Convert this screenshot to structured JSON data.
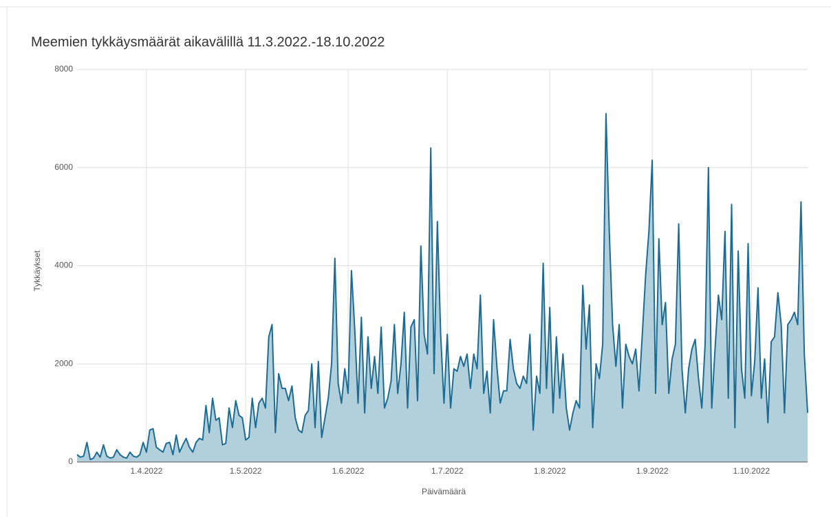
{
  "chart_data": {
    "type": "area",
    "title": "Meemien tykkäysmäärät aikavälillä 11.3.2022.-18.10.2022",
    "xlabel": "Päivämäärä",
    "ylabel": "Tykkäykset",
    "xlim": [
      "2022-03-11",
      "2022-10-18"
    ],
    "ylim": [
      0,
      8000
    ],
    "yticks": [
      0,
      2000,
      4000,
      6000,
      8000
    ],
    "xticks": [
      {
        "value": "2022-04-01",
        "label": "1.4.2022"
      },
      {
        "value": "2022-05-01",
        "label": "1.5.2022"
      },
      {
        "value": "2022-06-01",
        "label": "1.6.2022"
      },
      {
        "value": "2022-07-01",
        "label": "1.7.2022"
      },
      {
        "value": "2022-08-01",
        "label": "1.8.2022"
      },
      {
        "value": "2022-09-01",
        "label": "1.9.2022"
      },
      {
        "value": "2022-10-01",
        "label": "1.10.2022"
      }
    ],
    "grid": true,
    "color": "#1b6b93",
    "fill": "#b2cfdc",
    "x": [
      "2022-03-11",
      "2022-03-12",
      "2022-03-13",
      "2022-03-14",
      "2022-03-15",
      "2022-03-16",
      "2022-03-17",
      "2022-03-18",
      "2022-03-19",
      "2022-03-20",
      "2022-03-21",
      "2022-03-22",
      "2022-03-23",
      "2022-03-24",
      "2022-03-25",
      "2022-03-26",
      "2022-03-27",
      "2022-03-28",
      "2022-03-29",
      "2022-03-30",
      "2022-03-31",
      "2022-04-01",
      "2022-04-02",
      "2022-04-03",
      "2022-04-04",
      "2022-04-05",
      "2022-04-06",
      "2022-04-07",
      "2022-04-08",
      "2022-04-09",
      "2022-04-10",
      "2022-04-11",
      "2022-04-12",
      "2022-04-13",
      "2022-04-14",
      "2022-04-15",
      "2022-04-16",
      "2022-04-17",
      "2022-04-18",
      "2022-04-19",
      "2022-04-20",
      "2022-04-21",
      "2022-04-22",
      "2022-04-23",
      "2022-04-24",
      "2022-04-25",
      "2022-04-26",
      "2022-04-27",
      "2022-04-28",
      "2022-04-29",
      "2022-04-30",
      "2022-05-01",
      "2022-05-02",
      "2022-05-03",
      "2022-05-04",
      "2022-05-05",
      "2022-05-06",
      "2022-05-07",
      "2022-05-08",
      "2022-05-09",
      "2022-05-10",
      "2022-05-11",
      "2022-05-12",
      "2022-05-13",
      "2022-05-14",
      "2022-05-15",
      "2022-05-16",
      "2022-05-17",
      "2022-05-18",
      "2022-05-19",
      "2022-05-20",
      "2022-05-21",
      "2022-05-22",
      "2022-05-23",
      "2022-05-24",
      "2022-05-25",
      "2022-05-26",
      "2022-05-27",
      "2022-05-28",
      "2022-05-29",
      "2022-05-30",
      "2022-05-31",
      "2022-06-01",
      "2022-06-02",
      "2022-06-03",
      "2022-06-04",
      "2022-06-05",
      "2022-06-06",
      "2022-06-07",
      "2022-06-08",
      "2022-06-09",
      "2022-06-10",
      "2022-06-11",
      "2022-06-12",
      "2022-06-13",
      "2022-06-14",
      "2022-06-15",
      "2022-06-16",
      "2022-06-17",
      "2022-06-18",
      "2022-06-19",
      "2022-06-20",
      "2022-06-21",
      "2022-06-22",
      "2022-06-23",
      "2022-06-24",
      "2022-06-25",
      "2022-06-26",
      "2022-06-27",
      "2022-06-28",
      "2022-06-29",
      "2022-06-30",
      "2022-07-01",
      "2022-07-02",
      "2022-07-03",
      "2022-07-04",
      "2022-07-05",
      "2022-07-06",
      "2022-07-07",
      "2022-07-08",
      "2022-07-09",
      "2022-07-10",
      "2022-07-11",
      "2022-07-12",
      "2022-07-13",
      "2022-07-14",
      "2022-07-15",
      "2022-07-16",
      "2022-07-17",
      "2022-07-18",
      "2022-07-19",
      "2022-07-20",
      "2022-07-21",
      "2022-07-22",
      "2022-07-23",
      "2022-07-24",
      "2022-07-25",
      "2022-07-26",
      "2022-07-27",
      "2022-07-28",
      "2022-07-29",
      "2022-07-30",
      "2022-07-31",
      "2022-08-01",
      "2022-08-02",
      "2022-08-03",
      "2022-08-04",
      "2022-08-05",
      "2022-08-06",
      "2022-08-07",
      "2022-08-08",
      "2022-08-09",
      "2022-08-10",
      "2022-08-11",
      "2022-08-12",
      "2022-08-13",
      "2022-08-14",
      "2022-08-15",
      "2022-08-16",
      "2022-08-17",
      "2022-08-18",
      "2022-08-19",
      "2022-08-20",
      "2022-08-21",
      "2022-08-22",
      "2022-08-23",
      "2022-08-24",
      "2022-08-25",
      "2022-08-26",
      "2022-08-27",
      "2022-08-28",
      "2022-08-29",
      "2022-08-30",
      "2022-08-31",
      "2022-09-01",
      "2022-09-02",
      "2022-09-03",
      "2022-09-04",
      "2022-09-05",
      "2022-09-06",
      "2022-09-07",
      "2022-09-08",
      "2022-09-09",
      "2022-09-10",
      "2022-09-11",
      "2022-09-12",
      "2022-09-13",
      "2022-09-14",
      "2022-09-15",
      "2022-09-16",
      "2022-09-17",
      "2022-09-18",
      "2022-09-19",
      "2022-09-20",
      "2022-09-21",
      "2022-09-22",
      "2022-09-23",
      "2022-09-24",
      "2022-09-25",
      "2022-09-26",
      "2022-09-27",
      "2022-09-28",
      "2022-09-29",
      "2022-09-30",
      "2022-10-01",
      "2022-10-02",
      "2022-10-03",
      "2022-10-04",
      "2022-10-05",
      "2022-10-06",
      "2022-10-07",
      "2022-10-08",
      "2022-10-09",
      "2022-10-10",
      "2022-10-11",
      "2022-10-12",
      "2022-10-13",
      "2022-10-14",
      "2022-10-15",
      "2022-10-16",
      "2022-10-17",
      "2022-10-18"
    ],
    "values": [
      150,
      100,
      120,
      400,
      50,
      80,
      200,
      100,
      350,
      120,
      80,
      100,
      250,
      150,
      100,
      80,
      200,
      120,
      100,
      150,
      400,
      200,
      650,
      680,
      300,
      250,
      200,
      380,
      400,
      150,
      550,
      200,
      350,
      480,
      300,
      200,
      400,
      480,
      450,
      1150,
      600,
      1300,
      850,
      900,
      350,
      380,
      1100,
      700,
      1250,
      950,
      900,
      450,
      500,
      1300,
      700,
      1200,
      1300,
      1100,
      2550,
      2800,
      600,
      1800,
      1500,
      1500,
      1250,
      1550,
      900,
      650,
      600,
      950,
      1050,
      2000,
      700,
      2050,
      500,
      900,
      1300,
      2000,
      4150,
      1600,
      1200,
      1900,
      1400,
      3900,
      2700,
      1200,
      2950,
      1000,
      2550,
      1500,
      2150,
      1400,
      2750,
      1100,
      1300,
      1650,
      2800,
      1400,
      2000,
      3050,
      1100,
      2750,
      2900,
      1250,
      4400,
      2600,
      2200,
      6400,
      1800,
      4900,
      2600,
      1200,
      2600,
      1100,
      1900,
      1850,
      2150,
      1950,
      2200,
      1500,
      2200,
      1900,
      3400,
      1400,
      1850,
      1000,
      2900,
      1950,
      1200,
      1450,
      1450,
      2500,
      1900,
      1600,
      1500,
      1750,
      1600,
      2600,
      650,
      1750,
      1400,
      4050,
      1500,
      3150,
      1000,
      2550,
      1300,
      2200,
      1100,
      650,
      1000,
      1250,
      1100,
      3600,
      2300,
      3200,
      700,
      2000,
      1700,
      2400,
      7100,
      4700,
      2800,
      1950,
      2800,
      1100,
      2400,
      2150,
      2000,
      2300,
      1450,
      2600,
      3800,
      4700,
      6150,
      1400,
      4550,
      2800,
      3250,
      1400,
      2100,
      2400,
      4850,
      1900,
      1000,
      1900,
      2300,
      2500,
      1700,
      1100,
      2400,
      6000,
      1100,
      2300,
      3400,
      2900,
      4700,
      1300,
      5250,
      700,
      4300,
      1900,
      1300,
      4450,
      1350,
      2050,
      3550,
      1300,
      2100,
      800,
      2450,
      2550,
      3450,
      2800,
      1000,
      2800,
      2900,
      3050,
      2800,
      5300,
      2200,
      1000
    ]
  }
}
